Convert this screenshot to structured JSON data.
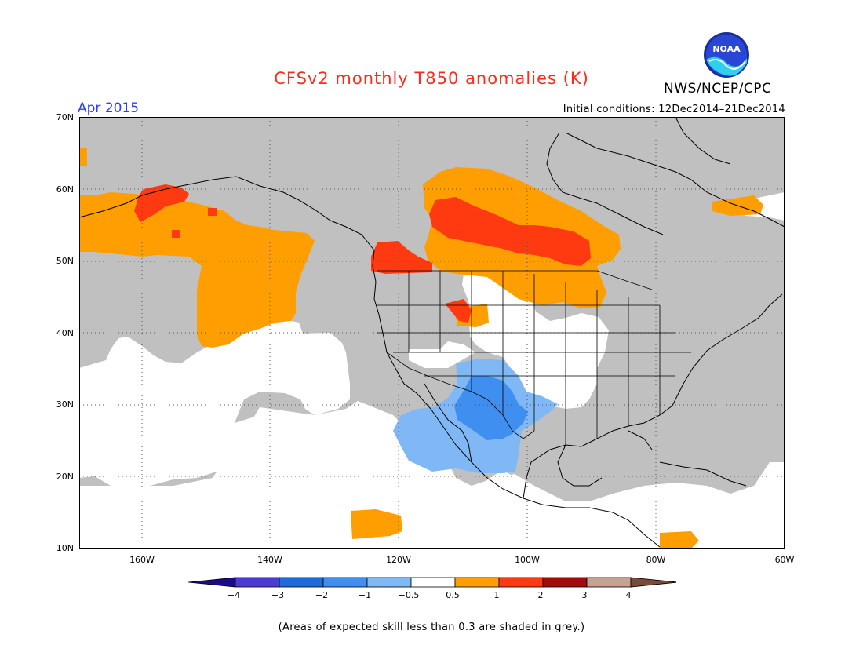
{
  "header": {
    "title": "CFSv2 monthly T850 anomalies (K)",
    "org": "NWS/NCEP/CPC",
    "logo_text": "NOAA",
    "month": "Apr 2015",
    "initial_conditions": "Initial conditions: 12Dec2014–21Dec2014"
  },
  "map": {
    "lat_labels": [
      "70N",
      "60N",
      "50N",
      "40N",
      "30N",
      "20N",
      "10N"
    ],
    "lon_labels": [
      "160W",
      "140W",
      "120W",
      "100W",
      "80W",
      "60W"
    ],
    "region": "North America / Northeast Pacific",
    "grey_meaning": "skill < 0.3"
  },
  "colorbar": {
    "colors": [
      "#1d0a8a",
      "#4b3bd1",
      "#1f6cd6",
      "#3f8ff0",
      "#7fb8f5",
      "#ffffff",
      "#ff9e00",
      "#ff3a10",
      "#a10d0d",
      "#c8a190",
      "#7a4a3a"
    ],
    "tick_labels": [
      "−4",
      "−3",
      "−2",
      "−1",
      "−0.5",
      "0.5",
      "1",
      "2",
      "3",
      "4"
    ]
  },
  "footnote": "(Areas of expected skill less than 0.3 are shaded in grey.)",
  "colors": {
    "grey": "#c0c0c0",
    "warm1": "#ff9e00",
    "warm2": "#ff3a10",
    "cool1": "#7fb8f5",
    "cool2": "#3f8ff0",
    "title_red": "#ff2a1a",
    "month_blue": "#2d3cff"
  }
}
